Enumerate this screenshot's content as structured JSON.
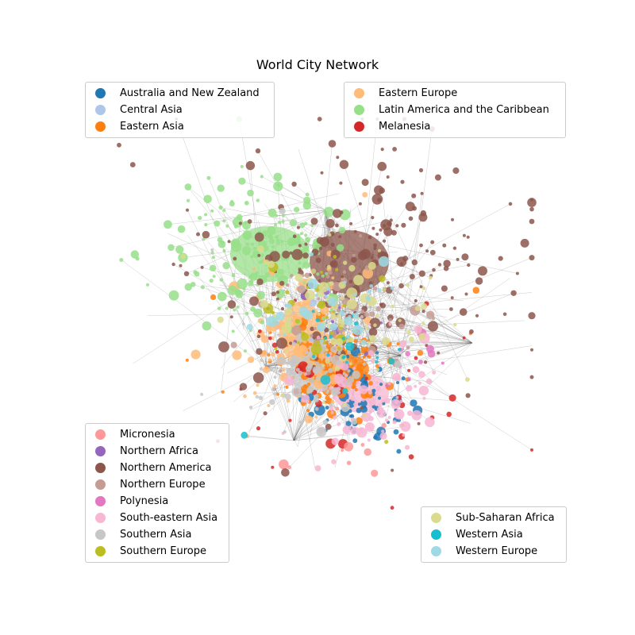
{
  "title": "World City Network",
  "regions": [
    {
      "name": "Australia and New Zealand",
      "color": "#1f77b4"
    },
    {
      "name": "Central Asia",
      "color": "#aec7e8"
    },
    {
      "name": "Eastern Asia",
      "color": "#ff7f0e"
    },
    {
      "name": "Eastern Europe",
      "color": "#ffbb78"
    },
    {
      "name": "Latin America and the Caribbean",
      "color": "#98df8a"
    },
    {
      "name": "Melanesia",
      "color": "#d62728"
    },
    {
      "name": "Micronesia",
      "color": "#ff9896"
    },
    {
      "name": "Northern Africa",
      "color": "#9467bd"
    },
    {
      "name": "Northern America",
      "color": "#8c564b"
    },
    {
      "name": "Northern Europe",
      "color": "#c49c94"
    },
    {
      "name": "Polynesia",
      "color": "#e377c2"
    },
    {
      "name": "South-eastern Asia",
      "color": "#f7b6d2"
    },
    {
      "name": "Southern Asia",
      "color": "#c7c7c7"
    },
    {
      "name": "Southern Europe",
      "color": "#bcbd22"
    },
    {
      "name": "Sub-Saharan Africa",
      "color": "#dbdb8d"
    },
    {
      "name": "Western Asia",
      "color": "#17becf"
    },
    {
      "name": "Western Europe",
      "color": "#9edae5"
    }
  ],
  "legends": {
    "top_left": [
      0,
      1,
      2
    ],
    "top_right": [
      3,
      4,
      5
    ],
    "bottom_left": [
      6,
      7,
      8,
      9,
      10,
      11,
      12,
      13
    ],
    "bottom_right": [
      14,
      15,
      16
    ]
  }
}
